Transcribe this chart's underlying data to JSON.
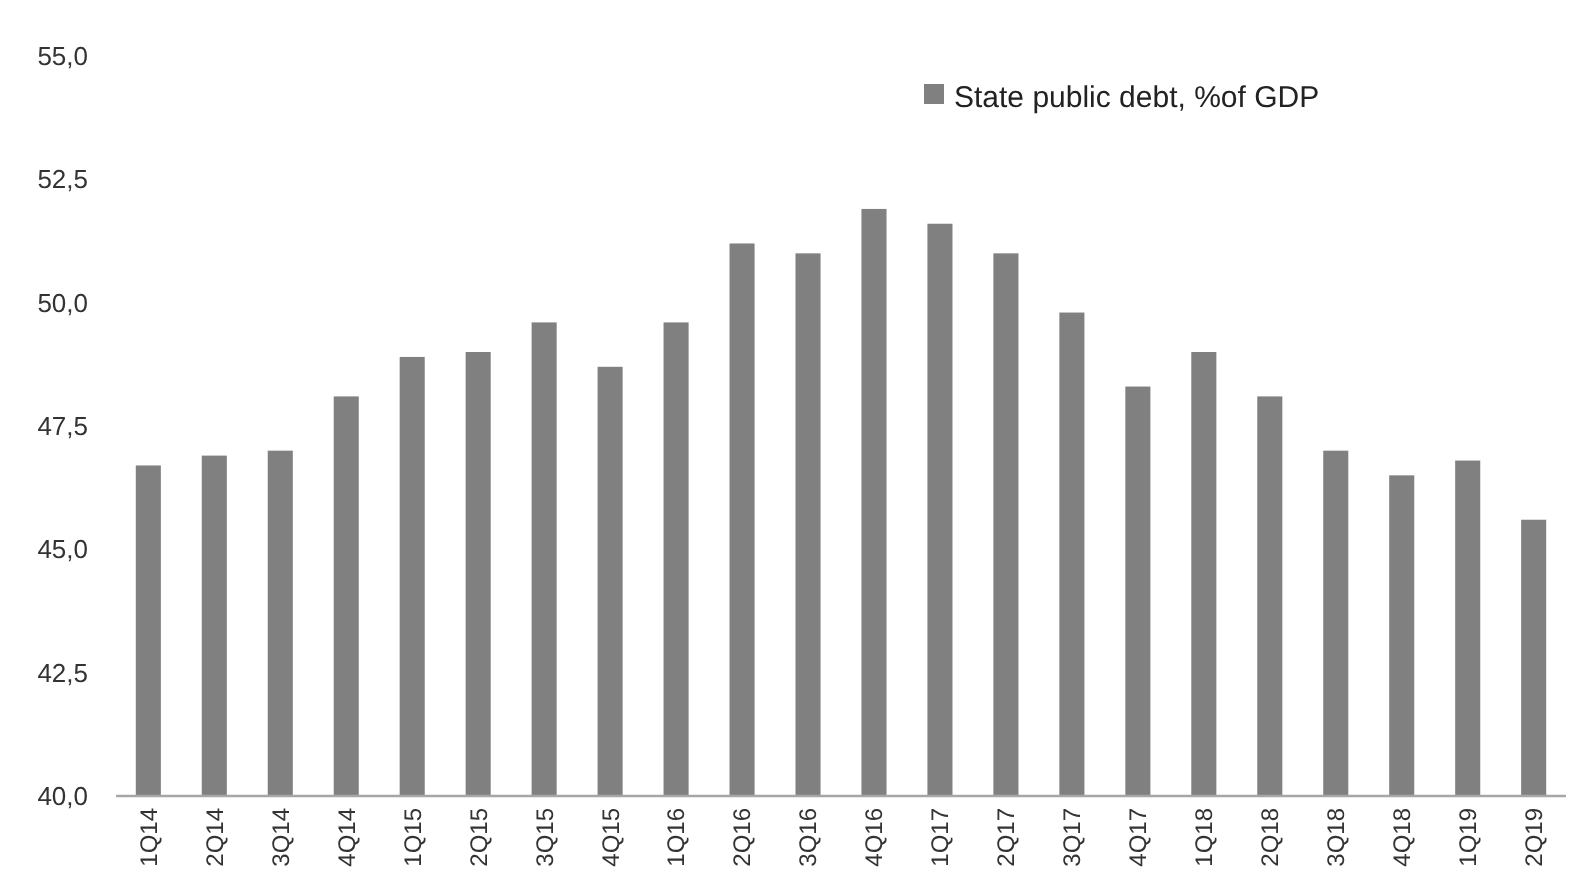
{
  "chart_data": {
    "type": "bar",
    "categories": [
      "1Q14",
      "2Q14",
      "3Q14",
      "4Q14",
      "1Q15",
      "2Q15",
      "3Q15",
      "4Q15",
      "1Q16",
      "2Q16",
      "3Q16",
      "4Q16",
      "1Q17",
      "2Q17",
      "3Q17",
      "4Q17",
      "1Q18",
      "2Q18",
      "3Q18",
      "4Q18",
      "1Q19",
      "2Q19"
    ],
    "series": [
      {
        "name": "State public debt, %of GDP",
        "color": "#808080",
        "values": [
          46.7,
          46.9,
          47.0,
          48.1,
          48.9,
          49.0,
          49.6,
          48.7,
          49.6,
          51.2,
          51.0,
          51.9,
          51.6,
          51.0,
          49.8,
          48.3,
          49.0,
          48.1,
          47.0,
          46.5,
          46.8,
          45.6
        ]
      }
    ],
    "ylim": [
      40,
      55
    ],
    "yticks": [
      {
        "value": 40,
        "label": "40,0"
      },
      {
        "value": 42.5,
        "label": "42,5"
      },
      {
        "value": 45,
        "label": "45,0"
      },
      {
        "value": 47.5,
        "label": "47,5"
      },
      {
        "value": 50,
        "label": "50,0"
      },
      {
        "value": 52.5,
        "label": "52,5"
      },
      {
        "value": 55,
        "label": "55,0"
      }
    ],
    "legend": "top right",
    "grid": false
  }
}
